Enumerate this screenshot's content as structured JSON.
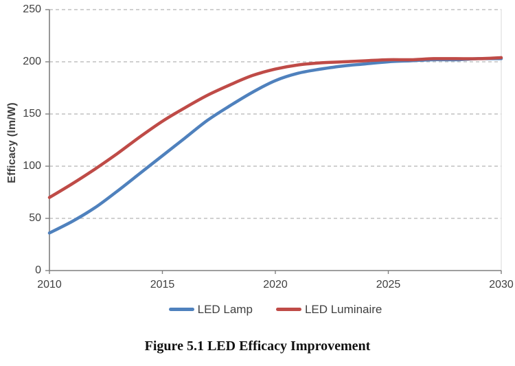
{
  "figure": {
    "caption": "Figure 5.1 LED Efficacy Improvement"
  },
  "chart_data": {
    "type": "line",
    "title": "Figure 5.1 LED Efficacy Improvement",
    "xlabel": "",
    "ylabel": "Efficacy (lm/W)",
    "xlim": [
      2010,
      2030
    ],
    "ylim": [
      0,
      250
    ],
    "x_ticks": [
      "2010",
      "2015",
      "2020",
      "2025",
      "2030"
    ],
    "y_ticks": [
      0,
      50,
      100,
      150,
      200,
      250
    ],
    "grid": "horizontal-dashed",
    "legend_position": "bottom",
    "x": [
      2010,
      2011,
      2012,
      2013,
      2014,
      2015,
      2016,
      2017,
      2018,
      2019,
      2020,
      2021,
      2022,
      2023,
      2024,
      2025,
      2026,
      2027,
      2028,
      2029,
      2030
    ],
    "series": [
      {
        "name": "LED Lamp",
        "color": "#4f81bd",
        "values": [
          36,
          47,
          60,
          76,
          93,
          110,
          127,
          144,
          158,
          171,
          182,
          189,
          193,
          196,
          198,
          200,
          201,
          202,
          202,
          203,
          203
        ]
      },
      {
        "name": "LED Luminaire",
        "color": "#bf4b47",
        "values": [
          70,
          83,
          97,
          112,
          128,
          143,
          156,
          168,
          178,
          187,
          193,
          197,
          199,
          200,
          201,
          202,
          202,
          203,
          203,
          203,
          204
        ]
      }
    ],
    "colors": {
      "gridline_gray": "#b3b3b3",
      "axis_gray": "#7f7f7f",
      "plot_border_gray": "#d9d9d9",
      "text_gray": "#404040"
    }
  }
}
